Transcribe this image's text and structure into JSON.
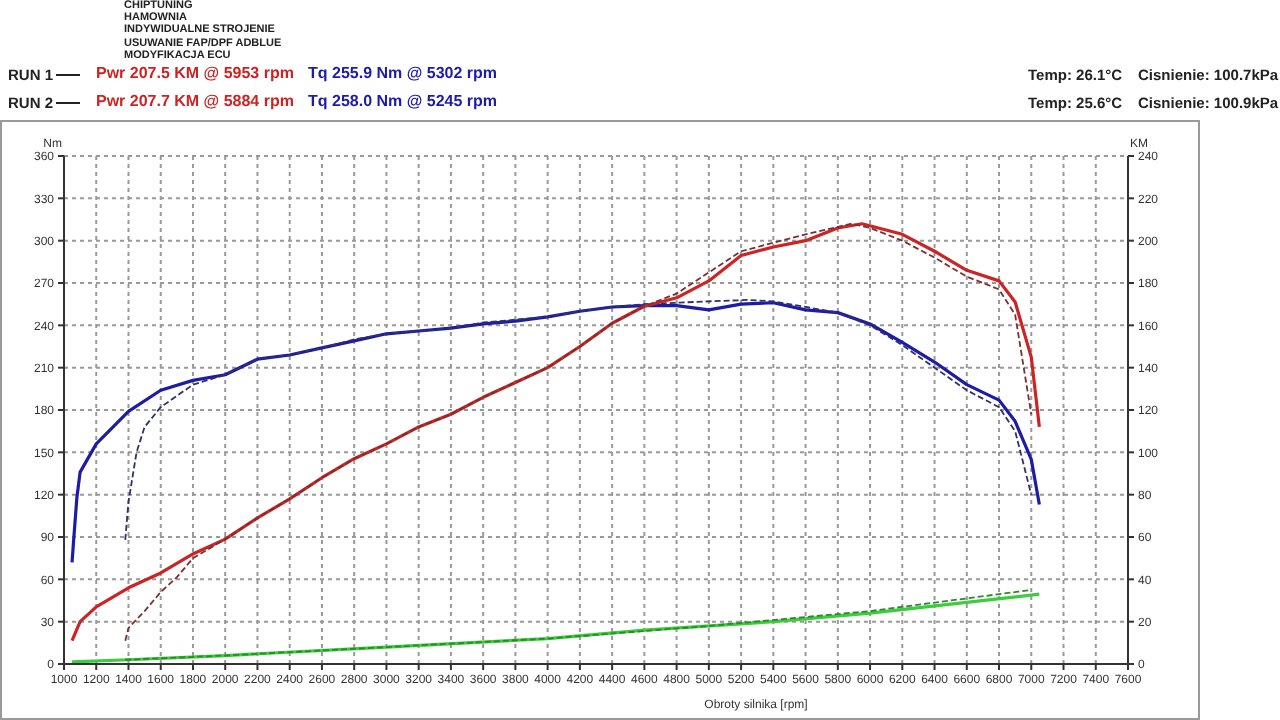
{
  "chart_data": {
    "type": "line",
    "xlabel": "Obroty silnika [rpm]",
    "ylabel": "Nm",
    "y2label": "KM",
    "annotations": [
      "CHIPTUNING",
      "HAMOWNIA",
      "INDYWIDUALNE STROJENIE",
      "USUWANIE FAP/DPF ADBLUE",
      "MODYFIKACJA ECU",
      "RUN 1",
      "Pwr 207.5 KM @ 5953 rpm",
      "Tq 255.9 Nm @ 5302 rpm",
      "Temp: 26.1°C",
      "Cisnienie: 100.7kPa",
      "RUN 2",
      "Pwr 207.7 KM @ 5884 rpm",
      "Tq 258.0 Nm @ 5245 rpm",
      "Temp: 25.6°C",
      "Cisnienie: 100.9kPa"
    ],
    "xlim": [
      1000,
      7600
    ],
    "xticks": [
      1000,
      1200,
      1400,
      1600,
      1800,
      2000,
      2200,
      2400,
      2600,
      2800,
      3000,
      3200,
      3400,
      3600,
      3800,
      4000,
      4200,
      4400,
      4600,
      4800,
      5000,
      5200,
      5400,
      5600,
      5800,
      6000,
      6200,
      6400,
      6600,
      6800,
      7000,
      7200,
      7400,
      7600
    ],
    "ylim": [
      0,
      360
    ],
    "yticks": [
      0,
      30,
      60,
      90,
      120,
      150,
      180,
      210,
      240,
      270,
      300,
      330,
      360
    ],
    "y2lim": [
      0,
      240
    ],
    "y2ticks": [
      0,
      20,
      40,
      60,
      80,
      100,
      120,
      140,
      160,
      180,
      200,
      220,
      240
    ],
    "grid": true,
    "marker": "none",
    "series": [
      {
        "color": "#1c1ca8",
        "line_style": "solid",
        "x": [
          1050,
          1060,
          1080,
          1100,
          1200,
          1400,
          1600,
          1800,
          2000,
          2200,
          2400,
          2600,
          2800,
          3000,
          3200,
          3400,
          3600,
          3800,
          4000,
          4200,
          4400,
          4600,
          4800,
          5000,
          5200,
          5400,
          5600,
          5800,
          6000,
          6200,
          6400,
          6600,
          6800,
          6900,
          7000,
          7050
        ],
        "values": [
          72,
          88,
          118,
          136,
          156,
          179,
          194,
          201,
          205,
          216,
          219,
          224,
          229,
          234,
          236,
          238,
          241,
          243,
          246,
          250,
          253,
          254,
          254,
          251,
          255,
          256,
          251,
          249,
          241,
          228,
          214,
          198,
          187,
          172,
          145,
          113
        ]
      },
      {
        "color": "#30306a",
        "line_style": "dashed",
        "x": [
          1380,
          1400,
          1450,
          1500,
          1600,
          1800,
          2000,
          2200,
          2400,
          2600,
          2800,
          3000,
          3200,
          3400,
          3600,
          3800,
          4000,
          4200,
          4400,
          4600,
          4800,
          5000,
          5245,
          5400,
          5600,
          5800,
          6000,
          6200,
          6400,
          6600,
          6800,
          6900,
          7000
        ],
        "values": [
          88,
          115,
          150,
          168,
          182,
          198,
          205,
          216,
          219,
          224,
          230,
          234,
          236,
          238,
          242,
          244,
          246,
          250,
          253,
          255,
          256,
          257,
          258,
          257,
          253,
          249,
          240,
          226,
          210,
          194,
          182,
          165,
          120
        ]
      },
      {
        "axis": "y2",
        "color": "#cc2424",
        "line_style": "solid",
        "x": [
          1050,
          1100,
          1200,
          1400,
          1600,
          1800,
          2000,
          2200,
          2400,
          2600,
          2800,
          3000,
          3200,
          3400,
          3600,
          3800,
          4000,
          4200,
          4400,
          4600,
          4800,
          5000,
          5200,
          5400,
          5600,
          5800,
          5950,
          6200,
          6400,
          6600,
          6800,
          6900,
          7000,
          7050
        ],
        "values": [
          11,
          20,
          27,
          36,
          43,
          52,
          59,
          69,
          78,
          88,
          97,
          104,
          112,
          118,
          126,
          133,
          140,
          150,
          161,
          169,
          173,
          181,
          193,
          197,
          200,
          206,
          208,
          203,
          195,
          186,
          181,
          171,
          145,
          112
        ]
      },
      {
        "axis": "y2",
        "color": "#7a3030",
        "line_style": "dashed",
        "x": [
          1380,
          1400,
          1500,
          1600,
          1700,
          1800,
          2000,
          2200,
          2400,
          2600,
          2800,
          3000,
          3200,
          3400,
          3600,
          3800,
          4000,
          4200,
          4400,
          4600,
          4800,
          5000,
          5200,
          5400,
          5600,
          5884,
          6000,
          6200,
          6400,
          6600,
          6800,
          6900,
          7000
        ],
        "values": [
          11,
          17,
          25,
          34,
          41,
          50,
          59,
          69,
          78,
          88,
          97,
          104,
          112,
          118,
          126,
          133,
          140,
          150,
          161,
          169,
          175,
          185,
          195,
          199,
          203,
          208,
          206,
          200,
          192,
          183,
          177,
          165,
          118
        ]
      },
      {
        "axis": "y2",
        "color": "#3ccc3c",
        "line_style": "solid",
        "x": [
          1050,
          1400,
          2000,
          3000,
          4000,
          4600,
          5400,
          6000,
          7050
        ],
        "values": [
          1,
          2,
          4,
          8,
          12,
          16,
          20,
          24,
          33
        ]
      },
      {
        "axis": "y2",
        "color": "#2a8a2a",
        "line_style": "dashed",
        "x": [
          1380,
          2000,
          3000,
          4000,
          5000,
          6000,
          7000
        ],
        "values": [
          2,
          4,
          8,
          12,
          18,
          25,
          35
        ]
      }
    ]
  }
}
